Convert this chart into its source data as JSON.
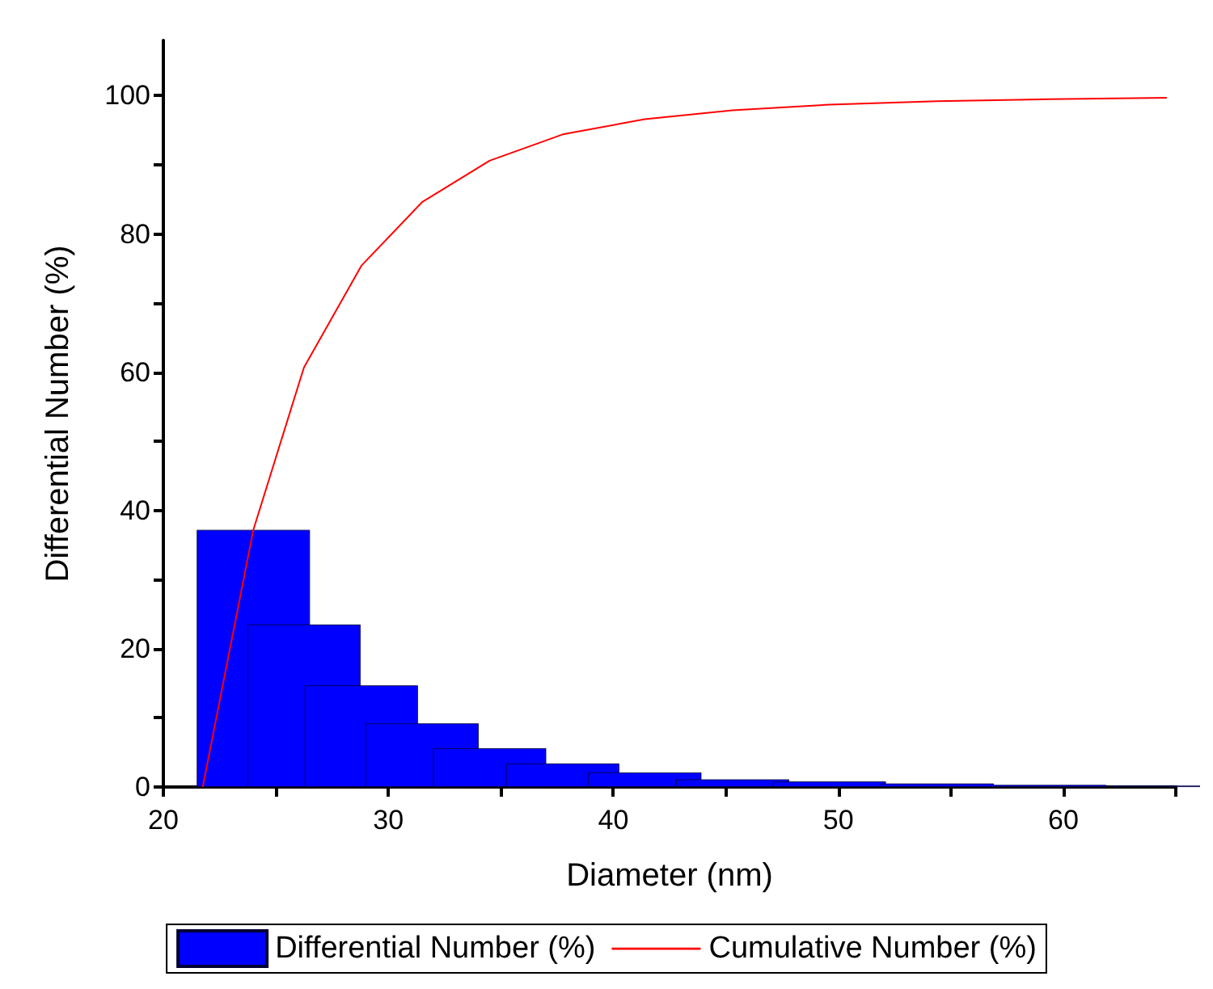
{
  "chart_data": {
    "type": "bar",
    "xlabel": "Diameter (nm)",
    "ylabel": "Differential Number (%)",
    "legend": "bottom",
    "grid": false,
    "marker": "none",
    "line_style": "solid",
    "xlim": [
      20,
      65
    ],
    "xticks": [
      20,
      {
        "value": 25,
        "label": null
      },
      30,
      {
        "value": 35,
        "label": null
      },
      40,
      {
        "value": 45,
        "label": null
      },
      50,
      {
        "value": 55,
        "label": null
      },
      60,
      {
        "value": 65,
        "label": null
      }
    ],
    "ylim": [
      0,
      108
    ],
    "yticks": [
      0,
      {
        "value": 10,
        "label": null
      },
      20,
      {
        "value": 30,
        "label": null
      },
      40,
      {
        "value": 50,
        "label": null
      },
      60,
      {
        "value": 70,
        "label": null
      },
      80,
      {
        "value": 90,
        "label": null
      },
      100
    ],
    "series": [
      {
        "name": "Differential Number (%)",
        "color": "#0000ff",
        "x": [
          24.0,
          26.25,
          28.8,
          31.5,
          34.5,
          37.75,
          41.4,
          45.3,
          49.6,
          54.4,
          59.4,
          64.6
        ],
        "values": [
          37.2,
          23.5,
          14.7,
          9.2,
          5.6,
          3.4,
          2.1,
          1.1,
          0.8,
          0.5,
          0.3,
          0.2
        ]
      },
      {
        "name": "Cumulative Number (%)",
        "type": "line",
        "color": "#ff0000",
        "x": [
          21.75,
          24.0,
          26.25,
          28.8,
          31.5,
          34.5,
          37.75,
          41.4,
          45.3,
          49.6,
          54.4,
          59.4,
          64.6
        ],
        "values": [
          0,
          37.2,
          60.7,
          75.4,
          84.6,
          90.6,
          94.4,
          96.6,
          97.9,
          98.7,
          99.2,
          99.5,
          99.7
        ]
      }
    ]
  }
}
